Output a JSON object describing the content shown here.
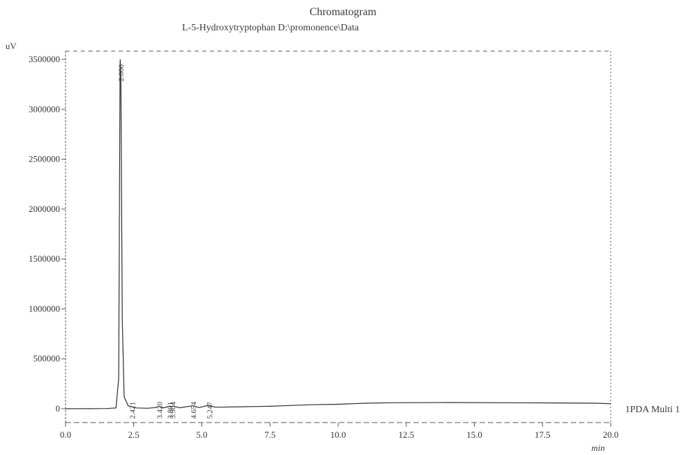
{
  "chart_data": {
    "type": "line",
    "title": "Chromatogram",
    "subtitle": "L-5-Hydroxytryptophan D:\\promonence\\Data",
    "xlabel": "min",
    "ylabel": "uV",
    "xlim": [
      0.0,
      20.0
    ],
    "ylim": [
      -100000,
      3550000
    ],
    "x_ticks": [
      "0.0",
      "2.5",
      "5.0",
      "7.5",
      "10.0",
      "12.5",
      "15.0",
      "17.5",
      "20.0"
    ],
    "x_tick_values": [
      0.0,
      2.5,
      5.0,
      7.5,
      10.0,
      12.5,
      15.0,
      17.5,
      20.0
    ],
    "y_ticks": [
      "0",
      "500000",
      "1000000",
      "1500000",
      "2000000",
      "2500000",
      "3000000",
      "3500000"
    ],
    "y_tick_values": [
      0,
      500000,
      1000000,
      1500000,
      2000000,
      2500000,
      3000000,
      3500000
    ],
    "series": [
      {
        "name": "1PDA Multi 1",
        "x": [
          0.0,
          1.5,
          1.85,
          1.95,
          2.0,
          2.006,
          2.03,
          2.08,
          2.15,
          2.3,
          2.421,
          2.6,
          3.0,
          3.3,
          3.42,
          3.6,
          3.8,
          3.86,
          3.95,
          4.2,
          4.654,
          4.9,
          5.247,
          5.5,
          6.5,
          7.5,
          8.0,
          9.0,
          10.0,
          11.0,
          12.0,
          14.0,
          16.0,
          18.0,
          19.5,
          20.0
        ],
        "y": [
          0,
          2000,
          8000,
          300000,
          3400000,
          3500000,
          3300000,
          900000,
          120000,
          30000,
          20000,
          8000,
          5000,
          12000,
          22000,
          9000,
          24000,
          18000,
          26000,
          10000,
          30000,
          12000,
          35000,
          15000,
          20000,
          25000,
          30000,
          40000,
          45000,
          55000,
          60000,
          62000,
          60000,
          58000,
          55000,
          50000
        ]
      }
    ],
    "peak_labels": [
      {
        "x": 2.006,
        "label": "2.006"
      },
      {
        "x": 2.421,
        "label": "2.421"
      },
      {
        "x": 3.42,
        "label": "3.420"
      },
      {
        "x": 3.801,
        "label": "3.801"
      },
      {
        "x": 3.904,
        "label": "3.904"
      },
      {
        "x": 4.654,
        "label": "4.654"
      },
      {
        "x": 5.247,
        "label": "5.247"
      }
    ],
    "grid": false,
    "legend": "right"
  },
  "colors": {
    "line": "#2b2b2b",
    "axis": "#555555",
    "text": "#333333"
  }
}
